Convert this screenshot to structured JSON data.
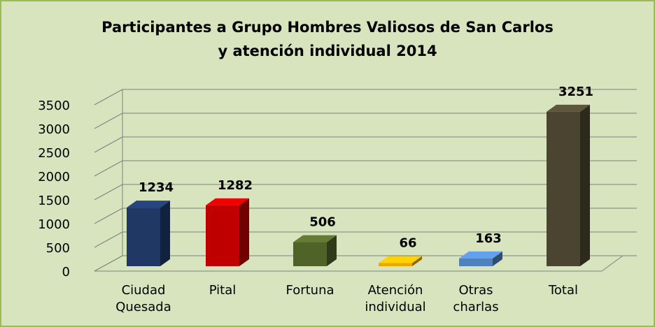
{
  "chart_data": {
    "type": "bar3d",
    "title": "Participantes a Grupo Hombres Valiosos de San Carlos y atención individual 2014",
    "categories": [
      "Ciudad Quesada",
      "Pital",
      "Fortuna",
      "Atención individual",
      "Otras charlas",
      "Total"
    ],
    "values": [
      1234,
      1282,
      506,
      66,
      163,
      3251
    ],
    "colors": [
      "#1f3864",
      "#c00000",
      "#4f6228",
      "#e8a800",
      "#4f81bd",
      "#4a4430"
    ],
    "ylim": [
      0,
      3500
    ],
    "yticks": [
      0,
      500,
      1000,
      1500,
      2000,
      2500,
      3000,
      3500
    ],
    "grid": true
  }
}
